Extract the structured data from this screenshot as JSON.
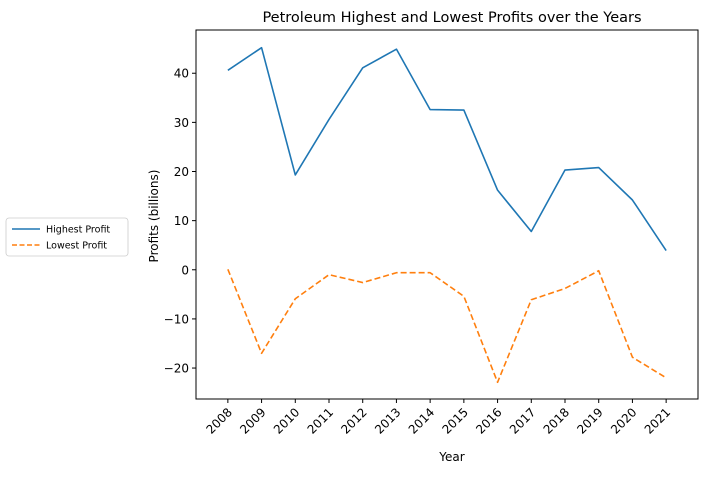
{
  "chart_data": {
    "type": "line",
    "title": "Petroleum Highest and Lowest Profits over the Years",
    "xlabel": "Year",
    "ylabel": "Profits (billions)",
    "categories": [
      "2008",
      "2009",
      "2010",
      "2011",
      "2012",
      "2013",
      "2014",
      "2015",
      "2016",
      "2017",
      "2018",
      "2019",
      "2020",
      "2021"
    ],
    "ylim": [
      -26.3,
      48.8
    ],
    "yticks": [
      -20,
      -10,
      0,
      10,
      20,
      30,
      40
    ],
    "ytick_labels": [
      "−20",
      "−10",
      "0",
      "10",
      "20",
      "30",
      "40"
    ],
    "xtick_rotation": 45,
    "grid": false,
    "legend_position": "outside-left",
    "series": [
      {
        "name": "Highest Profit",
        "color": "#1f77b4",
        "linestyle": "solid",
        "values": [
          40.6,
          45.2,
          19.3,
          30.6,
          41.1,
          44.9,
          32.6,
          32.5,
          16.2,
          7.8,
          20.3,
          20.8,
          14.2,
          3.9
        ]
      },
      {
        "name": "Lowest Profit",
        "color": "#ff7f0e",
        "linestyle": "dashed",
        "values": [
          0.1,
          -17.0,
          -5.9,
          -1.0,
          -2.6,
          -0.6,
          -0.6,
          -5.4,
          -22.9,
          -6.1,
          -3.8,
          -0.2,
          -17.8,
          -22.0
        ]
      }
    ]
  }
}
